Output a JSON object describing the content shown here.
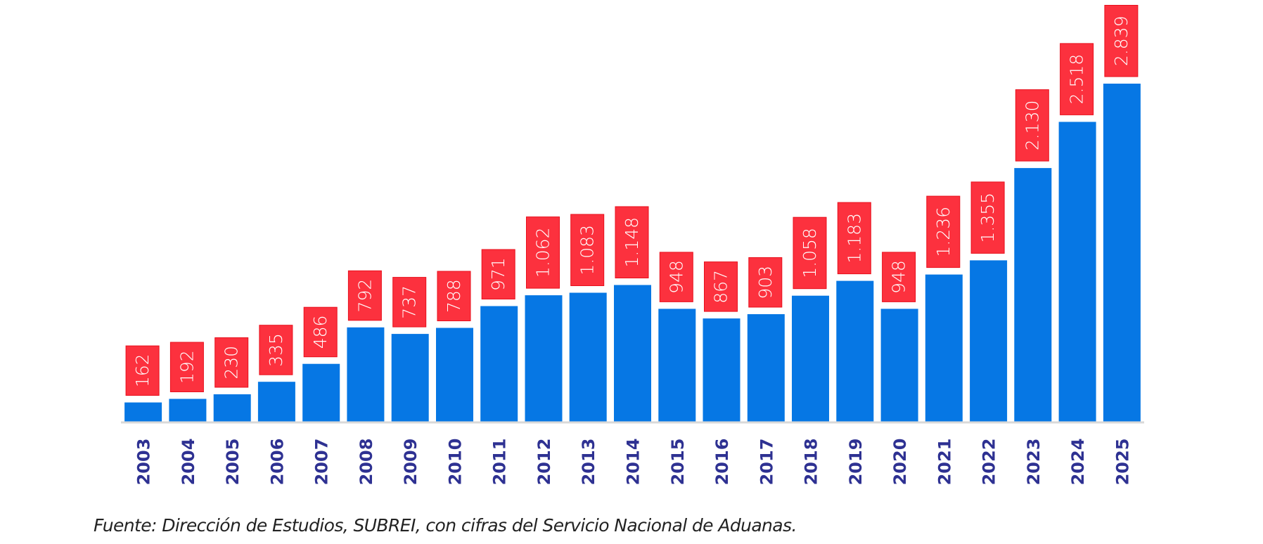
{
  "chart_data": {
    "type": "bar",
    "title": "",
    "xlabel": "",
    "ylabel": "",
    "grid": false,
    "ylim": [
      0,
      2839
    ],
    "categories": [
      "2003",
      "2004",
      "2005",
      "2006",
      "2007",
      "2008",
      "2009",
      "2010",
      "2011",
      "2012",
      "2013",
      "2014",
      "2015",
      "2016",
      "2017",
      "2018",
      "2019",
      "2020",
      "2021",
      "2022",
      "2023",
      "2024",
      "2025"
    ],
    "values": [
      162,
      192,
      230,
      335,
      486,
      792,
      737,
      788,
      971,
      1062,
      1083,
      1148,
      948,
      867,
      903,
      1058,
      1183,
      948,
      1236,
      1355,
      2130,
      2518,
      2839
    ],
    "data_labels": [
      "162",
      "192",
      "230",
      "335",
      "486",
      "792",
      "737",
      "788",
      "971",
      "1.062",
      "1.083",
      "1.148",
      "948",
      "867",
      "903",
      "1.058",
      "1.183",
      "948",
      "1.236",
      "1.355",
      "2.130",
      "2.518",
      "2.839"
    ],
    "colors": {
      "bar": "#0677e4",
      "label_box": "#fc313e",
      "label_box_border": "#e8101c",
      "label_text": "#ffffff",
      "tick_label": "#2e3192",
      "axis": "#d9d9d9"
    }
  },
  "footnote": "Fuente: Dirección de Estudios, SUBREI, con cifras del Servicio Nacional de Aduanas."
}
